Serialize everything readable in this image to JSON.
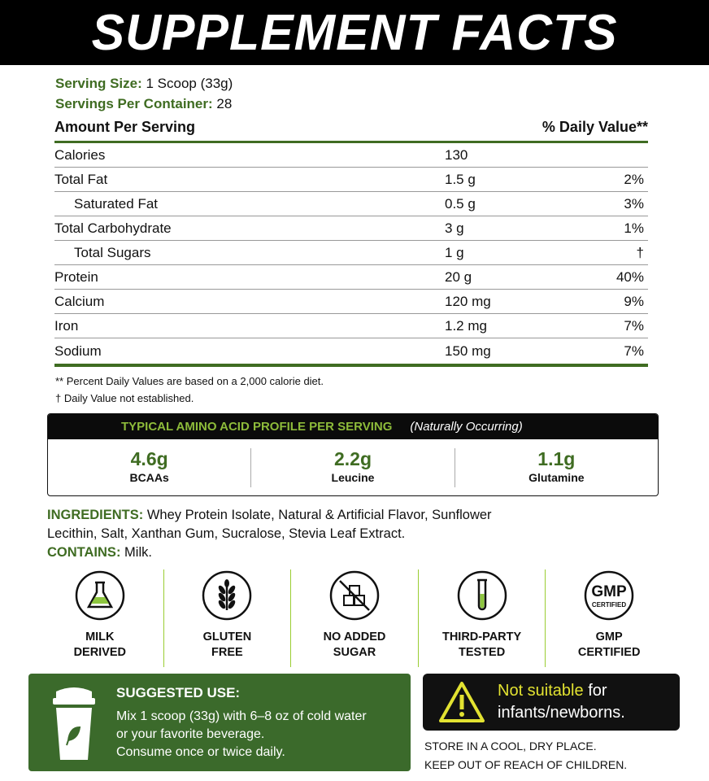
{
  "header": {
    "title": "SUPPLEMENT FACTS"
  },
  "serving": {
    "size_label": "Serving Size:",
    "size": "1 Scoop (33g)",
    "per_container_label": "Servings Per Container:",
    "per_container": "28"
  },
  "table": {
    "amount_header": "Amount Per Serving",
    "dv_header": "% Daily Value**",
    "rows": [
      {
        "name": "Calories",
        "amount": "130"
      },
      {
        "name": "Total Fat",
        "amount": "1.5 g",
        "dv": "2%"
      },
      {
        "name": "Saturated Fat",
        "amount": "0.5 g",
        "dv": "3%",
        "indent": true
      },
      {
        "name": "Total Carbohydrate",
        "amount": "3 g",
        "dv": "1%"
      },
      {
        "name": "Total Sugars",
        "amount": "1 g",
        "dv": "†",
        "indent": true
      },
      {
        "name": "Protein",
        "amount": "20 g",
        "dv": "40%"
      },
      {
        "name": "Calcium",
        "amount": "120 mg",
        "dv": "9%"
      },
      {
        "name": "Iron",
        "amount": "1.2 mg",
        "dv": "7%"
      },
      {
        "name": "Sodium",
        "amount": "150 mg",
        "dv": "7%"
      }
    ]
  },
  "footnotes": [
    "** Percent Daily Values are based on a 2,000 calorie diet.",
    "† Daily Value not established."
  ],
  "amino": {
    "title": "TYPICAL AMINO ACID PROFILE PER SERVING",
    "note": "(Naturally Occurring)",
    "items": [
      {
        "value": "4.6g",
        "label": "BCAAs"
      },
      {
        "value": "2.2g",
        "label": "Leucine"
      },
      {
        "value": "1.1g",
        "label": "Glutamine"
      }
    ]
  },
  "ingredients": {
    "label": "INGREDIENTS:",
    "text": "Whey Protein Isolate, Natural & Artificial Flavor, Sunflower Lecithin, Salt, Xanthan Gum, Sucralose, Stevia Leaf Extract."
  },
  "contains": {
    "label": "CONTAINS:",
    "text": "Milk."
  },
  "badges": [
    {
      "lines": [
        "MILK",
        "DERIVED"
      ]
    },
    {
      "lines": [
        "GLUTEN",
        "FREE"
      ]
    },
    {
      "lines": [
        "NO ADDED",
        "SUGAR"
      ]
    },
    {
      "lines": [
        "THIRD-PARTY",
        "TESTED"
      ]
    },
    {
      "icon_text": [
        "GMP",
        "CERTIFIED"
      ],
      "lines": [
        "GMP",
        "CERTIFIED"
      ]
    }
  ],
  "suggested_use": {
    "title": "SUGGESTED USE:",
    "lines": [
      "Mix 1 scoop (33g) with 6–8 oz of cold water",
      "or your favorite beverage.",
      "Consume once or twice daily."
    ]
  },
  "warning": {
    "highlight": "Not suitable",
    "text": "for infants/newborns."
  },
  "storage": [
    "STORE IN A COOL, DRY PLACE.",
    "KEEP OUT OF REACH OF CHILDREN."
  ]
}
